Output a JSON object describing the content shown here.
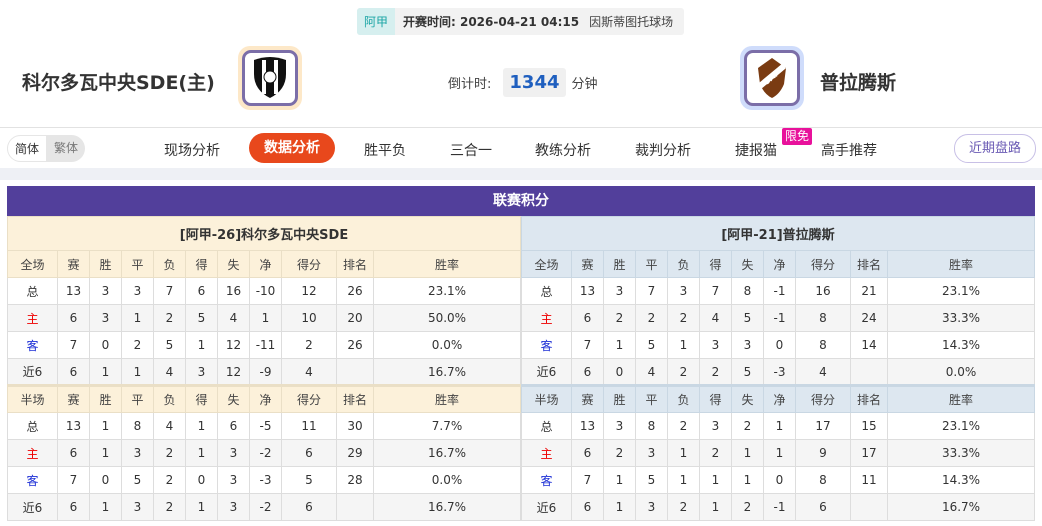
{
  "match": {
    "league": "阿甲",
    "time": "开赛时间: 2026-04-21 04:15",
    "venue": "因斯蒂图托球场",
    "home": "科尔多瓦中央SDE(主)",
    "away": "普拉腾斯",
    "countdown_label": "倒计时:",
    "countdown": "1344",
    "countdown_unit": "分钟",
    "home_logo": "CC",
    "away_logo": "CAP"
  },
  "nav": {
    "lang": [
      "简体",
      "繁体"
    ],
    "items": [
      "现场分析",
      "数据分析",
      "胜平负",
      "三合一",
      "教练分析",
      "裁判分析",
      "捷报猫",
      "高手推荐"
    ],
    "active": "数据分析",
    "badge": "限免",
    "recent": "近期盘路"
  },
  "standings": {
    "title": "联赛积分",
    "columns_full": [
      "全场",
      "赛",
      "胜",
      "平",
      "负",
      "得",
      "失",
      "净",
      "得分",
      "排名",
      "胜率"
    ],
    "columns_half": [
      "半场",
      "赛",
      "胜",
      "平",
      "负",
      "得",
      "失",
      "净",
      "得分",
      "排名",
      "胜率"
    ],
    "home": {
      "team": "[阿甲-26]科尔多瓦中央SDE",
      "full": [
        [
          "总",
          "13",
          "3",
          "3",
          "7",
          "6",
          "16",
          "-10",
          "12",
          "26",
          "23.1%"
        ],
        [
          "主",
          "6",
          "3",
          "1",
          "2",
          "5",
          "4",
          "1",
          "10",
          "20",
          "50.0%"
        ],
        [
          "客",
          "7",
          "0",
          "2",
          "5",
          "1",
          "12",
          "-11",
          "2",
          "26",
          "0.0%"
        ],
        [
          "近6",
          "6",
          "1",
          "1",
          "4",
          "3",
          "12",
          "-9",
          "4",
          "",
          "16.7%"
        ]
      ],
      "half": [
        [
          "总",
          "13",
          "1",
          "8",
          "4",
          "1",
          "6",
          "-5",
          "11",
          "30",
          "7.7%"
        ],
        [
          "主",
          "6",
          "1",
          "3",
          "2",
          "1",
          "3",
          "-2",
          "6",
          "29",
          "16.7%"
        ],
        [
          "客",
          "7",
          "0",
          "5",
          "2",
          "0",
          "3",
          "-3",
          "5",
          "28",
          "0.0%"
        ],
        [
          "近6",
          "6",
          "1",
          "3",
          "2",
          "1",
          "3",
          "-2",
          "6",
          "",
          "16.7%"
        ]
      ]
    },
    "away": {
      "team": "[阿甲-21]普拉腾斯",
      "full": [
        [
          "总",
          "13",
          "3",
          "7",
          "3",
          "7",
          "8",
          "-1",
          "16",
          "21",
          "23.1%"
        ],
        [
          "主",
          "6",
          "2",
          "2",
          "2",
          "4",
          "5",
          "-1",
          "8",
          "24",
          "33.3%"
        ],
        [
          "客",
          "7",
          "1",
          "5",
          "1",
          "3",
          "3",
          "0",
          "8",
          "14",
          "14.3%"
        ],
        [
          "近6",
          "6",
          "0",
          "4",
          "2",
          "2",
          "5",
          "-3",
          "4",
          "",
          "0.0%"
        ]
      ],
      "half": [
        [
          "总",
          "13",
          "3",
          "8",
          "2",
          "3",
          "2",
          "1",
          "17",
          "15",
          "23.1%"
        ],
        [
          "主",
          "6",
          "2",
          "3",
          "1",
          "2",
          "1",
          "1",
          "9",
          "17",
          "33.3%"
        ],
        [
          "客",
          "7",
          "1",
          "5",
          "1",
          "1",
          "1",
          "0",
          "8",
          "11",
          "14.3%"
        ],
        [
          "近6",
          "6",
          "1",
          "3",
          "2",
          "1",
          "2",
          "-1",
          "6",
          "",
          "16.7%"
        ]
      ]
    }
  },
  "colors": {
    "accent": "#e8481c",
    "title_bar": "#523f9b",
    "home_text": "#ee0000",
    "away_text": "#1d2fd6"
  }
}
